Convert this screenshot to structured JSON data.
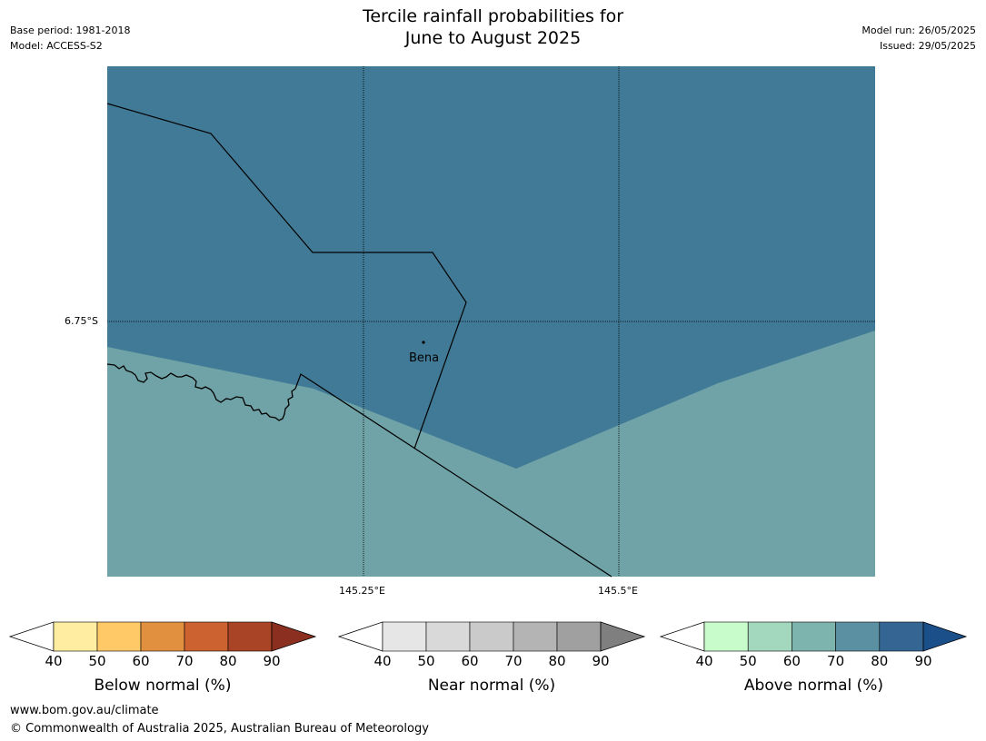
{
  "title": {
    "line1": "Tercile rainfall probabilities for",
    "line2": "June to August 2025"
  },
  "meta": {
    "base_period": "Base period: 1981-2018",
    "model": "Model: ACCESS-S2",
    "model_run": "Model run: 26/05/2025",
    "issued": "Issued: 29/05/2025"
  },
  "map": {
    "latitude_label": "6.75°S",
    "longitude_labels": [
      "145.25°E",
      "145.5°E"
    ],
    "town": "Bena",
    "colors": {
      "above_70_80": "#417a96",
      "above_60_70": "#6fa3a7",
      "boundary": "#000000"
    }
  },
  "colorbars": [
    {
      "label": "Below normal (%)",
      "ticks": [
        "40",
        "50",
        "60",
        "70",
        "80",
        "90"
      ],
      "colors": [
        "#ffffff",
        "#ffeea1",
        "#fec966",
        "#e0903f",
        "#cb6230",
        "#a94526",
        "#8b3020"
      ]
    },
    {
      "label": "Near normal (%)",
      "ticks": [
        "40",
        "50",
        "60",
        "70",
        "80",
        "90"
      ],
      "colors": [
        "#ffffff",
        "#e6e6e6",
        "#d9d9d9",
        "#cacaca",
        "#b4b4b4",
        "#a0a0a0",
        "#7f7f7f"
      ]
    },
    {
      "label": "Above normal (%)",
      "ticks": [
        "40",
        "50",
        "60",
        "70",
        "80",
        "90"
      ],
      "colors": [
        "#ffffff",
        "#c8fccb",
        "#a4d8be",
        "#7eb4ae",
        "#5b8fa2",
        "#356693",
        "#1b4f8a"
      ]
    }
  ],
  "footer": {
    "url": "www.bom.gov.au/climate",
    "copyright": "© Commonwealth of Australia 2025, Australian Bureau of Meteorology"
  }
}
